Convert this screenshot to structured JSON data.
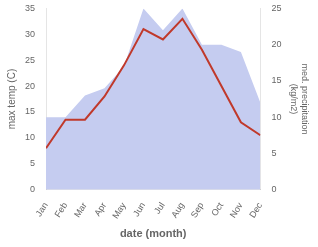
{
  "chart_data": {
    "type": "line",
    "xlabel": "date (month)",
    "ylabel": "max temp (C)",
    "y2label": "med. precipitation\n(kg/m2)",
    "categories": [
      "Jan",
      "Feb",
      "Mar",
      "Apr",
      "May",
      "Jun",
      "Jul",
      "Aug",
      "Sep",
      "Oct",
      "Nov",
      "Dec"
    ],
    "series": [
      {
        "type": "area",
        "axis": "y2",
        "color": "#c5ccf0",
        "values": [
          10,
          10,
          13,
          14,
          17,
          25,
          22,
          25,
          20,
          20,
          19,
          12
        ]
      },
      {
        "type": "line",
        "color": "#c0392b",
        "values": [
          8.0,
          13.5,
          13.5,
          18.0,
          24.0,
          31.0,
          29.0,
          33.0,
          27.0,
          20.0,
          13.0,
          10.5
        ]
      }
    ],
    "ylim": [
      0,
      35
    ],
    "yticks": [
      0,
      5,
      10,
      15,
      20,
      25,
      30,
      35
    ],
    "y2lim": [
      0,
      25
    ],
    "y2ticks": [
      0,
      5,
      10,
      15,
      20,
      25
    ],
    "grid": false
  }
}
